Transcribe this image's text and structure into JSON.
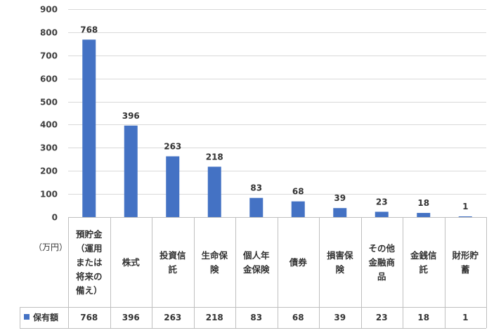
{
  "chart_data": {
    "type": "bar",
    "unit_label": "（万円）",
    "categories": [
      "預貯金（運用または将来の備え）",
      "株式",
      "投資信託",
      "生命保険",
      "個人年金保険",
      "債券",
      "損害保険",
      "その他金融商品",
      "金銭信託",
      "財形貯蓄"
    ],
    "category_lines": [
      [
        "預貯金",
        "（運用",
        "または",
        "将来の",
        "備え）"
      ],
      [
        "株式"
      ],
      [
        "投資信",
        "託"
      ],
      [
        "生命保",
        "険"
      ],
      [
        "個人年",
        "金保険"
      ],
      [
        "債券"
      ],
      [
        "損害保",
        "険"
      ],
      [
        "その他",
        "金融商",
        "品"
      ],
      [
        "金銭信",
        "託"
      ],
      [
        "財形貯",
        "蓄"
      ]
    ],
    "series": [
      {
        "name": "保有額",
        "values": [
          768,
          396,
          263,
          218,
          83,
          68,
          39,
          23,
          18,
          1
        ]
      }
    ],
    "yticks": [
      0,
      100,
      200,
      300,
      400,
      500,
      600,
      700,
      800,
      900
    ],
    "ylim": [
      0,
      900
    ],
    "grid": true,
    "data_table": true,
    "colors": {
      "bar": "#4472C4",
      "grid": "#D9D9D9",
      "axis": "#BFBFBF"
    }
  }
}
